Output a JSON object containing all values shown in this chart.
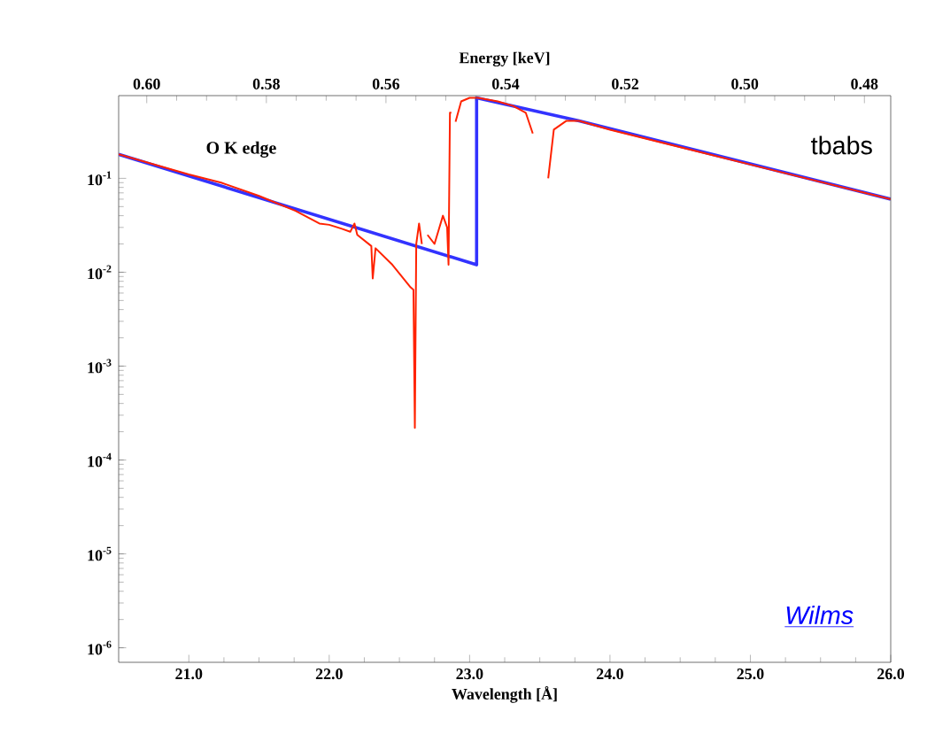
{
  "chart_data": {
    "type": "line",
    "xlabel": "Wavelength [Å]",
    "x2label": "Energy [keV]",
    "xlim": [
      20.5,
      26.0
    ],
    "x2lim": [
      0.6047,
      0.4756
    ],
    "ylim": [
      7e-07,
      0.76
    ],
    "log": "y",
    "grid": false,
    "marker": "none",
    "line_style": "solid",
    "xticks": [
      {
        "value": 21,
        "label": "21.0"
      },
      {
        "value": 22,
        "label": "22.0"
      },
      {
        "value": 23,
        "label": "23.0"
      },
      {
        "value": 24,
        "label": "24.0"
      },
      {
        "value": 25,
        "label": "25.0"
      },
      {
        "value": 26,
        "label": "26.0"
      }
    ],
    "x2ticks": [
      {
        "value": 0.6,
        "label": "0.60"
      },
      {
        "value": 0.58,
        "label": "0.58"
      },
      {
        "value": 0.56,
        "label": "0.56"
      },
      {
        "value": 0.54,
        "label": "0.54"
      },
      {
        "value": 0.52,
        "label": "0.52"
      },
      {
        "value": 0.5,
        "label": "0.50"
      },
      {
        "value": 0.48,
        "label": "0.48"
      }
    ],
    "yticks": [
      {
        "value": 1e-06,
        "label": "10$^{-6}$"
      },
      {
        "value": 1e-05,
        "label": "10$^{-5}$"
      },
      {
        "value": 0.0001,
        "label": "10$^{-4}$"
      },
      {
        "value": 0.001,
        "label": "10$^{-3}$"
      },
      {
        "value": 0.01,
        "label": "10$^{-2}$"
      },
      {
        "value": 0.1,
        "label": "10$^{-1}$"
      }
    ],
    "series": [
      {
        "color": "#3333ff",
        "x": [
          20.5,
          23.05,
          23.05,
          23.78,
          26.0
        ],
        "values": [
          0.18,
          0.012,
          0.72,
          0.41,
          0.06
        ]
      },
      {
        "color": "#ff2200",
        "x": [
          20.5,
          21.0,
          21.23,
          21.5,
          21.76,
          21.93,
          22.0,
          22.09,
          22.15,
          22.18,
          22.2,
          22.3,
          22.31,
          22.33,
          22.45,
          22.58,
          22.6,
          22.61,
          22.62,
          22.64,
          22.66,
          22.68,
          22.7,
          22.75,
          22.81,
          22.84,
          22.85,
          22.86,
          22.87,
          22.88,
          22.9,
          22.94,
          23.0,
          23.06,
          23.2,
          23.31,
          23.4,
          23.45,
          23.48,
          23.52,
          23.56,
          23.6,
          23.69,
          23.78,
          24.0,
          25.0,
          26.0
        ],
        "values": [
          0.18,
          0.11,
          0.09,
          0.065,
          0.045,
          0.033,
          0.032,
          0.029,
          0.027,
          0.033,
          0.025,
          0.019,
          0.0086,
          0.018,
          0.012,
          0.0069,
          0.0065,
          0.00022,
          0.02,
          0.033,
          0.02,
          null,
          0.025,
          0.02,
          0.04,
          0.03,
          0.012,
          0.5,
          0.5,
          null,
          0.4,
          0.66,
          0.72,
          0.72,
          0.66,
          0.59,
          0.5,
          0.3,
          null,
          null,
          0.1,
          0.33,
          0.41,
          0.41,
          0.33,
          0.14,
          0.06
        ]
      }
    ],
    "annotations": [
      "O K edge",
      "tbabs",
      "Wilms"
    ]
  }
}
